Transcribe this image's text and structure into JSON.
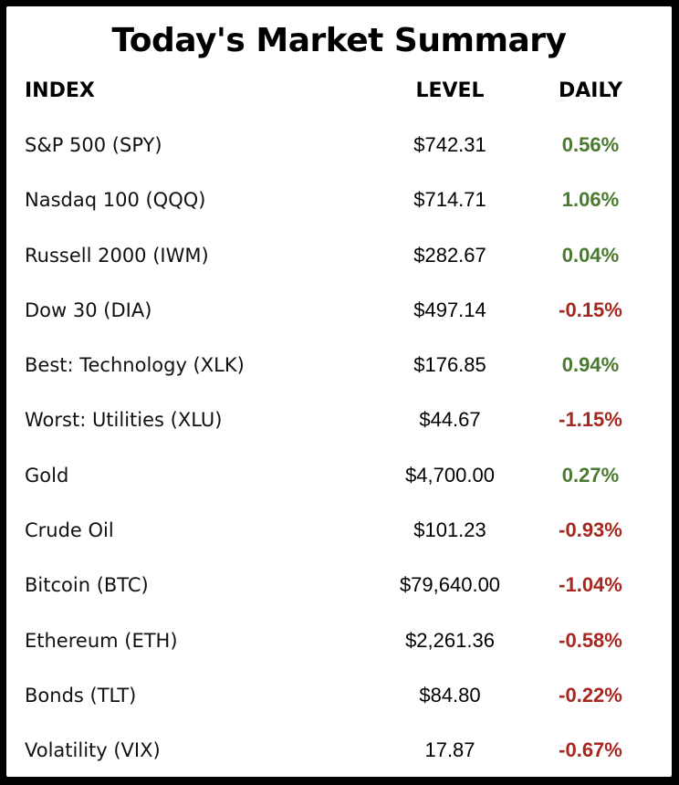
{
  "title": "Today's Market Summary",
  "headers": {
    "index": "INDEX",
    "level": "LEVEL",
    "daily": "DAILY"
  },
  "colors": {
    "positive": "#4a7a2f",
    "negative": "#a6271f"
  },
  "rows": [
    {
      "name": "S&P 500 (SPY)",
      "level": "$742.31",
      "daily": "0.56%",
      "direction": "up"
    },
    {
      "name": "Nasdaq 100 (QQQ)",
      "level": "$714.71",
      "daily": "1.06%",
      "direction": "up"
    },
    {
      "name": "Russell 2000 (IWM)",
      "level": "$282.67",
      "daily": "0.04%",
      "direction": "up"
    },
    {
      "name": "Dow 30 (DIA)",
      "level": "$497.14",
      "daily": "-0.15%",
      "direction": "down"
    },
    {
      "name": "Best: Technology (XLK)",
      "level": "$176.85",
      "daily": "0.94%",
      "direction": "up"
    },
    {
      "name": "Worst: Utilities (XLU)",
      "level": "$44.67",
      "daily": "-1.15%",
      "direction": "down"
    },
    {
      "name": "Gold",
      "level": "$4,700.00",
      "daily": "0.27%",
      "direction": "up"
    },
    {
      "name": "Crude Oil",
      "level": "$101.23",
      "daily": "-0.93%",
      "direction": "down"
    },
    {
      "name": "Bitcoin (BTC)",
      "level": "$79,640.00",
      "daily": "-1.04%",
      "direction": "down"
    },
    {
      "name": "Ethereum (ETH)",
      "level": "$2,261.36",
      "daily": "-0.58%",
      "direction": "down"
    },
    {
      "name": "Bonds (TLT)",
      "level": "$84.80",
      "daily": "-0.22%",
      "direction": "down"
    },
    {
      "name": "Volatility (VIX)",
      "level": "17.87",
      "daily": "-0.67%",
      "direction": "down"
    }
  ]
}
